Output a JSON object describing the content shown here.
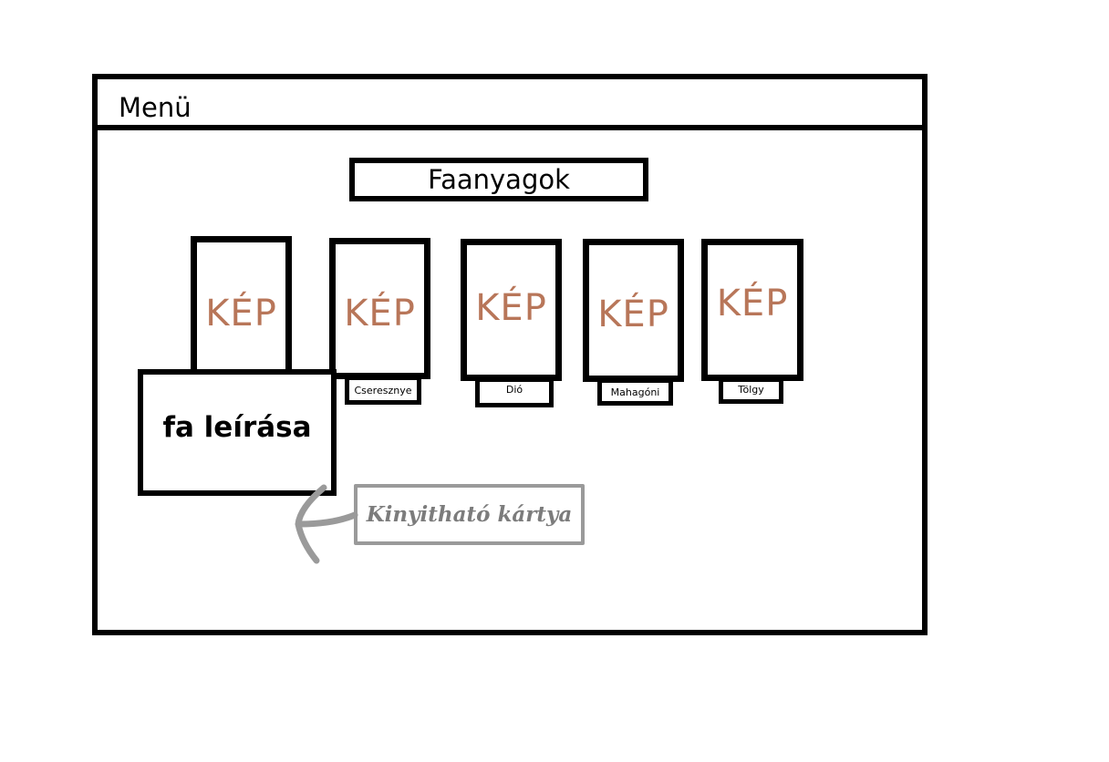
{
  "menu": {
    "label": "Menü"
  },
  "header": {
    "title": "Faanyagok"
  },
  "cards": [
    {
      "image_label": "KÉP",
      "name": ""
    },
    {
      "image_label": "KÉP",
      "name": "Cseresznye"
    },
    {
      "image_label": "KÉP",
      "name": "Dió"
    },
    {
      "image_label": "KÉP",
      "name": "Mahagóni"
    },
    {
      "image_label": "KÉP",
      "name": "Tölgy"
    }
  ],
  "expanded_card": {
    "description": "fa leírása"
  },
  "annotation": {
    "text": "Kinyitható kártya",
    "color": "#9a9a9a"
  },
  "colors": {
    "image_placeholder": "#b87659",
    "border": "#000000"
  }
}
